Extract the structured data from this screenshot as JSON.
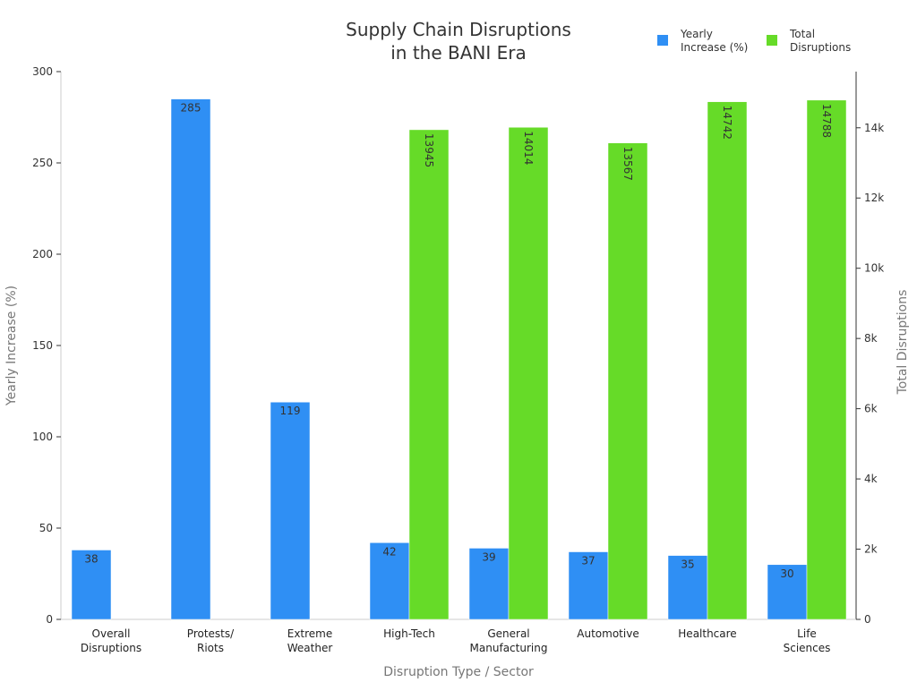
{
  "chart_data": {
    "type": "bar",
    "title_lines": [
      "Supply Chain Disruptions",
      "in the BANI Era"
    ],
    "xlabel": "Disruption Type / Sector",
    "ylabel_left": "Yearly Increase (%)",
    "ylabel_right": "Total Disruptions",
    "legend_position": "top-right",
    "categories": [
      [
        "Overall",
        "Disruptions"
      ],
      [
        "Protests/",
        "Riots"
      ],
      [
        "Extreme",
        "Weather"
      ],
      [
        "High-Tech"
      ],
      [
        "General",
        "Manufacturing"
      ],
      [
        "Automotive"
      ],
      [
        "Healthcare"
      ],
      [
        "Life",
        "Sciences"
      ]
    ],
    "y_left": {
      "min": 0,
      "max": 300,
      "ticks": [
        0,
        50,
        100,
        150,
        200,
        250,
        300
      ],
      "tick_labels": [
        "0",
        "50",
        "100",
        "150",
        "200",
        "250",
        "300"
      ]
    },
    "y_right": {
      "min": 0,
      "max": 15600,
      "ticks": [
        0,
        2000,
        4000,
        6000,
        8000,
        10000,
        12000,
        14000
      ],
      "tick_labels": [
        "0",
        "2k",
        "4k",
        "6k",
        "8k",
        "10k",
        "12k",
        "14k"
      ]
    },
    "series": [
      {
        "name": "Yearly Increase (%)",
        "legend_lines": [
          "Yearly",
          "Increase (%)"
        ],
        "axis": "left",
        "color": "#2f8ff4",
        "values": [
          38,
          285,
          119,
          42,
          39,
          37,
          35,
          30
        ]
      },
      {
        "name": "Total Disruptions",
        "legend_lines": [
          "Total",
          "Disruptions"
        ],
        "axis": "right",
        "color": "#66db28",
        "values": [
          null,
          null,
          null,
          13945,
          14014,
          13567,
          14742,
          14788
        ]
      }
    ]
  }
}
